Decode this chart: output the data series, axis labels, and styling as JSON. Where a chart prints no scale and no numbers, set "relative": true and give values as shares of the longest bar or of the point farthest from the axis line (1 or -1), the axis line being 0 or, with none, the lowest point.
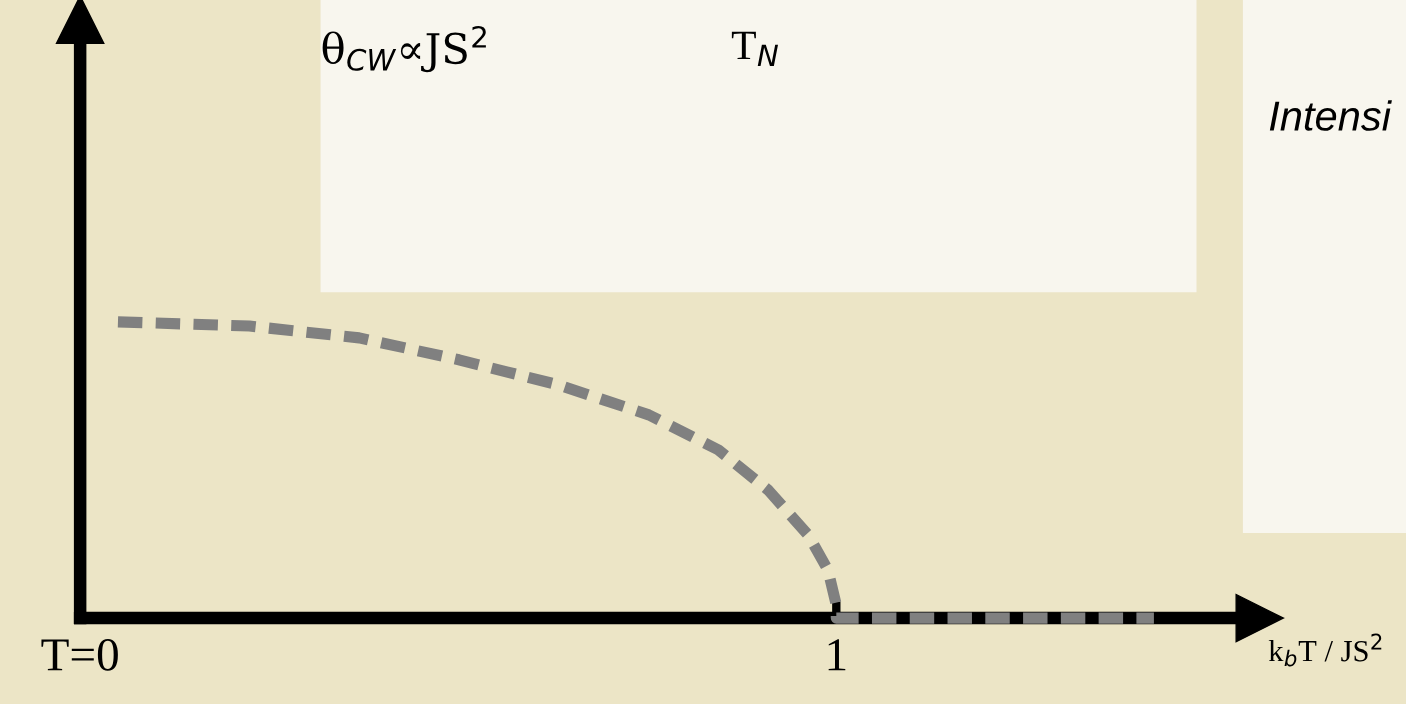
{
  "chart_data": {
    "type": "line",
    "relative": true,
    "xlabel": "k$_{b}$T / JS$^{2}$",
    "x": [
      0.05,
      0.224,
      0.369,
      0.501,
      0.633,
      0.752,
      0.844,
      0.91,
      0.963,
      0.989,
      1.0,
      1.0,
      1.42
    ],
    "series": [
      {
        "color": "#808080",
        "values": [
          1.0,
          0.986,
          0.946,
          0.872,
          0.787,
          0.686,
          0.568,
          0.432,
          0.28,
          0.162,
          0.044,
          0.0,
          0.0
        ]
      }
    ],
    "xlim": [
      0,
      1.56
    ],
    "xticks": [
      {
        "value": 0,
        "label": "T=0"
      },
      1
    ],
    "tick_labels": "x",
    "line_style": "dashed",
    "marker": "none",
    "grid": false,
    "annotations": [
      "θ$_{CW}$∝JS$^{2}$",
      "T$_{N}$",
      "Intensi"
    ]
  }
}
